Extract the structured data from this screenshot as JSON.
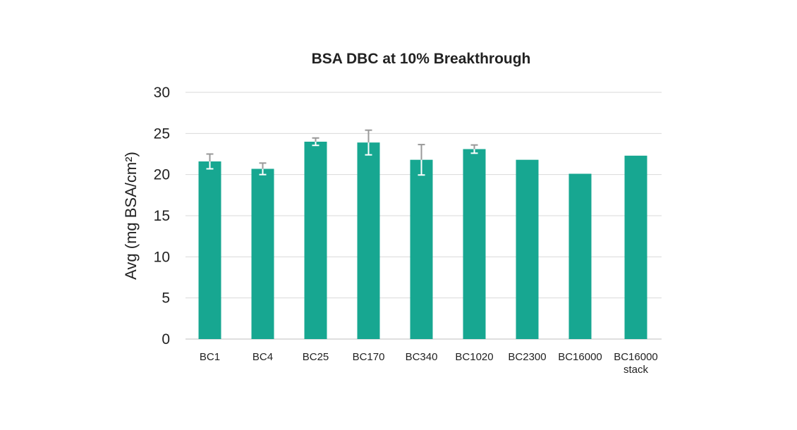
{
  "chart_data": {
    "type": "bar",
    "title": "BSA DBC at 10% Breakthrough",
    "ylabel": "Avg (mg BSA/cm²)",
    "xlabel": "",
    "ylim": [
      0,
      30
    ],
    "yticks": [
      "0",
      "5",
      "10",
      "15",
      "20",
      "25",
      "30"
    ],
    "grid": true,
    "categories": [
      [
        "BC1"
      ],
      [
        "BC4"
      ],
      [
        "BC25"
      ],
      [
        "BC170"
      ],
      [
        "BC340"
      ],
      [
        "BC1020"
      ],
      [
        "BC2300"
      ],
      [
        "BC16000"
      ],
      [
        "BC16000",
        "stack"
      ]
    ],
    "values": [
      21.6,
      20.7,
      24.0,
      23.9,
      21.8,
      23.1,
      21.8,
      20.1,
      22.3
    ],
    "errors": [
      0.9,
      0.7,
      0.45,
      1.5,
      1.85,
      0.5,
      null,
      null,
      null
    ],
    "bar_color": "#17a791",
    "error_bar_color": "#999999"
  }
}
